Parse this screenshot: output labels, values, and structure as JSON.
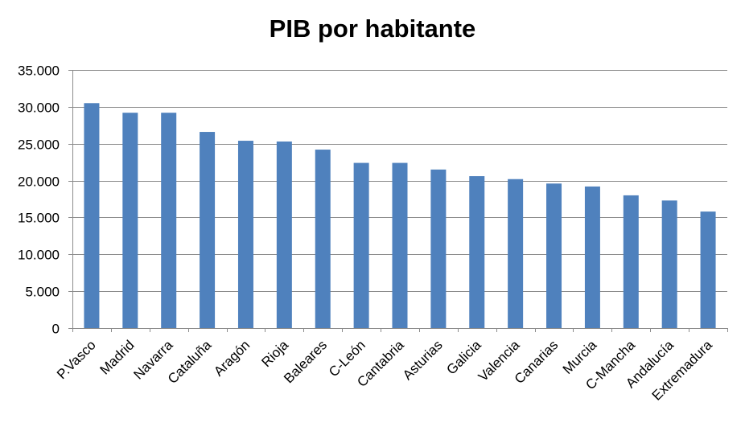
{
  "chart_data": {
    "type": "bar",
    "title": "PIB por habitante",
    "xlabel": "",
    "ylabel": "",
    "ylim": [
      0,
      35000
    ],
    "yticks": [
      0,
      5000,
      10000,
      15000,
      20000,
      25000,
      30000,
      35000
    ],
    "ytick_labels": [
      "0",
      "5.000",
      "10.000",
      "15.000",
      "20.000",
      "25.000",
      "30.000",
      "35.000"
    ],
    "grid": true,
    "legend": "none",
    "bar_color": "#4F81BD",
    "categories": [
      "P.Vasco",
      "Madrid",
      "Navarra",
      "Cataluña",
      "Aragón",
      "Rioja",
      "Baleares",
      "C-León",
      "Cantabria",
      "Asturias",
      "Galicia",
      "Valencia",
      "Canarias",
      "Murcia",
      "C-Mancha",
      "Andalucía",
      "Extremadura"
    ],
    "values": [
      30500,
      29200,
      29200,
      26600,
      25400,
      25300,
      24200,
      22400,
      22400,
      21500,
      20600,
      20200,
      19600,
      19200,
      18000,
      17300,
      15800
    ]
  }
}
